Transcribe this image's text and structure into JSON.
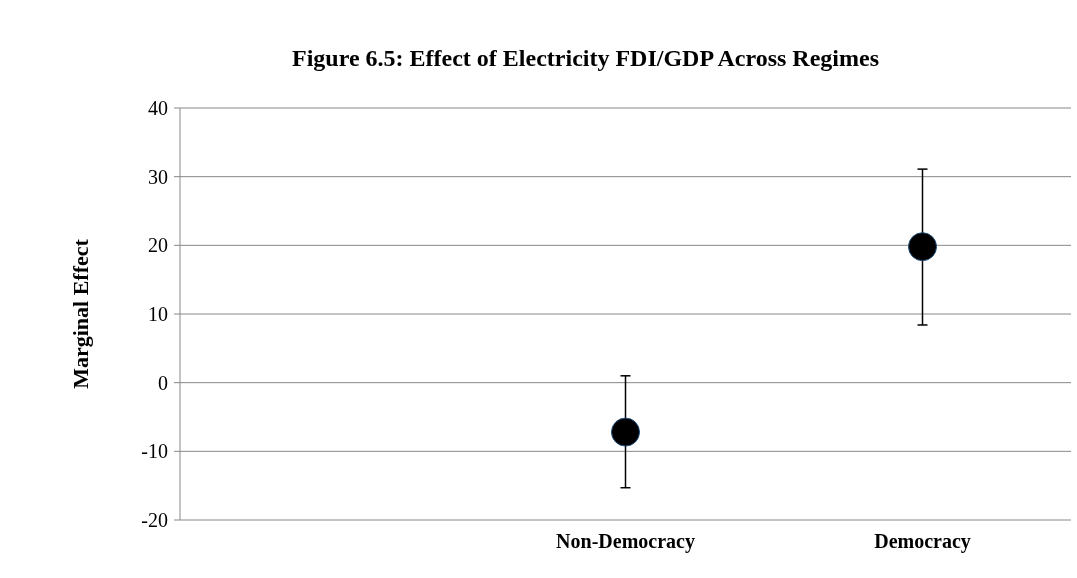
{
  "chart_data": {
    "type": "scatter",
    "title": "Figure 6.5: Effect of Electricity FDI/GDP Across Regimes",
    "ylabel": "Marginal Effect",
    "categories": [
      null,
      "Non-Democracy",
      "Democracy"
    ],
    "series": [
      {
        "color": "#000000",
        "values": [
          null,
          -7.2,
          19.8
        ],
        "errors": [
          null,
          [
            -15.3,
            1
          ],
          [
            8.4,
            31.1
          ]
        ]
      }
    ],
    "ylim": [
      -20,
      40
    ],
    "yticks": [
      -20,
      -10,
      0,
      10,
      20,
      30,
      40
    ],
    "grid": "y",
    "marker": "circle"
  }
}
